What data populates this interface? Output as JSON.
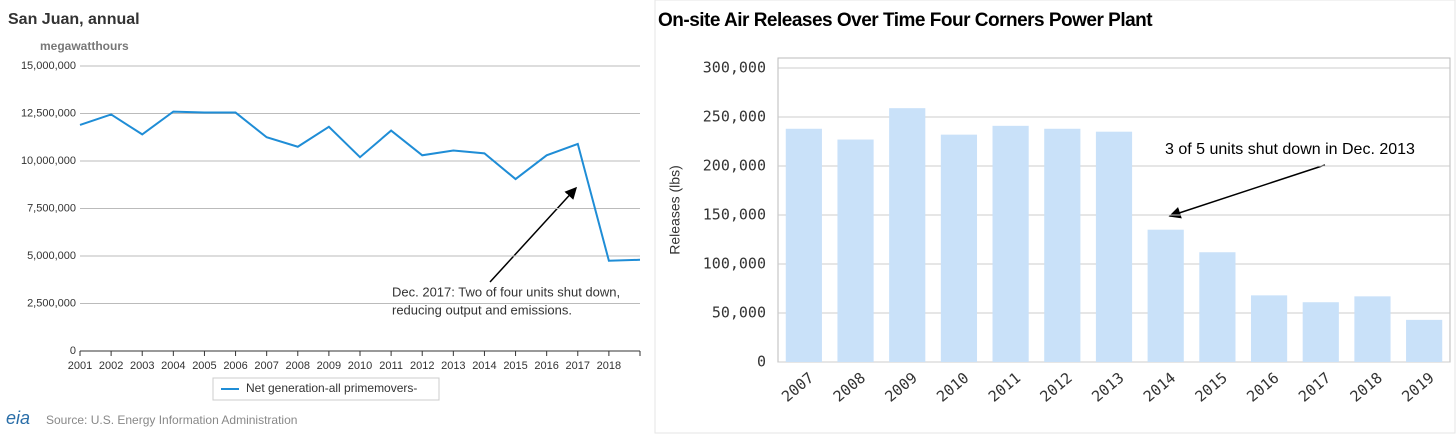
{
  "chart_data": [
    {
      "type": "line",
      "title": "San Juan, annual",
      "subtitle": "megawatthours",
      "categories": [
        "2001",
        "2002",
        "2003",
        "2004",
        "2005",
        "2006",
        "2007",
        "2008",
        "2009",
        "2010",
        "2011",
        "2012",
        "2013",
        "2014",
        "2015",
        "2016",
        "2017",
        "2018",
        null
      ],
      "series": [
        {
          "name": "Net generation-all primemovers-",
          "color": "#1f8dd6",
          "values": [
            11900000,
            12450000,
            11400000,
            12600000,
            12550000,
            12550000,
            11250000,
            10750000,
            11800000,
            10200000,
            11600000,
            10300000,
            10550000,
            10400000,
            9050000,
            10300000,
            10900000,
            4750000,
            4800000
          ]
        }
      ],
      "ylim": [
        0,
        15000000
      ],
      "yticks": [
        {
          "value": 0,
          "label": "0"
        },
        {
          "value": 2500000,
          "label": "2,500,000"
        },
        {
          "value": 5000000,
          "label": "5,000,000"
        },
        {
          "value": 7500000,
          "label": "7,500,000"
        },
        {
          "value": 10000000,
          "label": "10,000,000"
        },
        {
          "value": 12500000,
          "label": "12,500,000"
        },
        {
          "value": 15000000,
          "label": "15,000,000"
        }
      ],
      "grid": true,
      "annotation": [
        "Dec. 2017: Two of four units shut down,",
        "reducing output and emissions."
      ],
      "source": "Source: U.S. Energy Information Administration",
      "logo": "eia"
    },
    {
      "type": "bar",
      "title": "On-site Air Releases Over Time  Four Corners Power Plant",
      "ylabel": "Releases (lbs)",
      "categories": [
        "2007",
        "2008",
        "2009",
        "2010",
        "2011",
        "2012",
        "2013",
        "2014",
        "2015",
        "2016",
        "2017",
        "2018",
        "2019"
      ],
      "values": [
        238000,
        227000,
        259000,
        232000,
        241000,
        238000,
        235000,
        135000,
        112000,
        68000,
        61000,
        67000,
        43000
      ],
      "color": "#c9e1f9",
      "ylim": [
        0,
        300000
      ],
      "yticks": [
        0,
        {
          "value": 50000,
          "label": "50,000"
        },
        {
          "value": 100000,
          "label": "100,000"
        },
        {
          "value": 150000,
          "label": "150,000"
        },
        {
          "value": 200000,
          "label": "200,000"
        },
        {
          "value": 250000,
          "label": "250,000"
        },
        {
          "value": 300000,
          "label": "300,000"
        }
      ],
      "grid": true,
      "annotation": "3 of 5 units shut down in Dec. 2013"
    }
  ]
}
